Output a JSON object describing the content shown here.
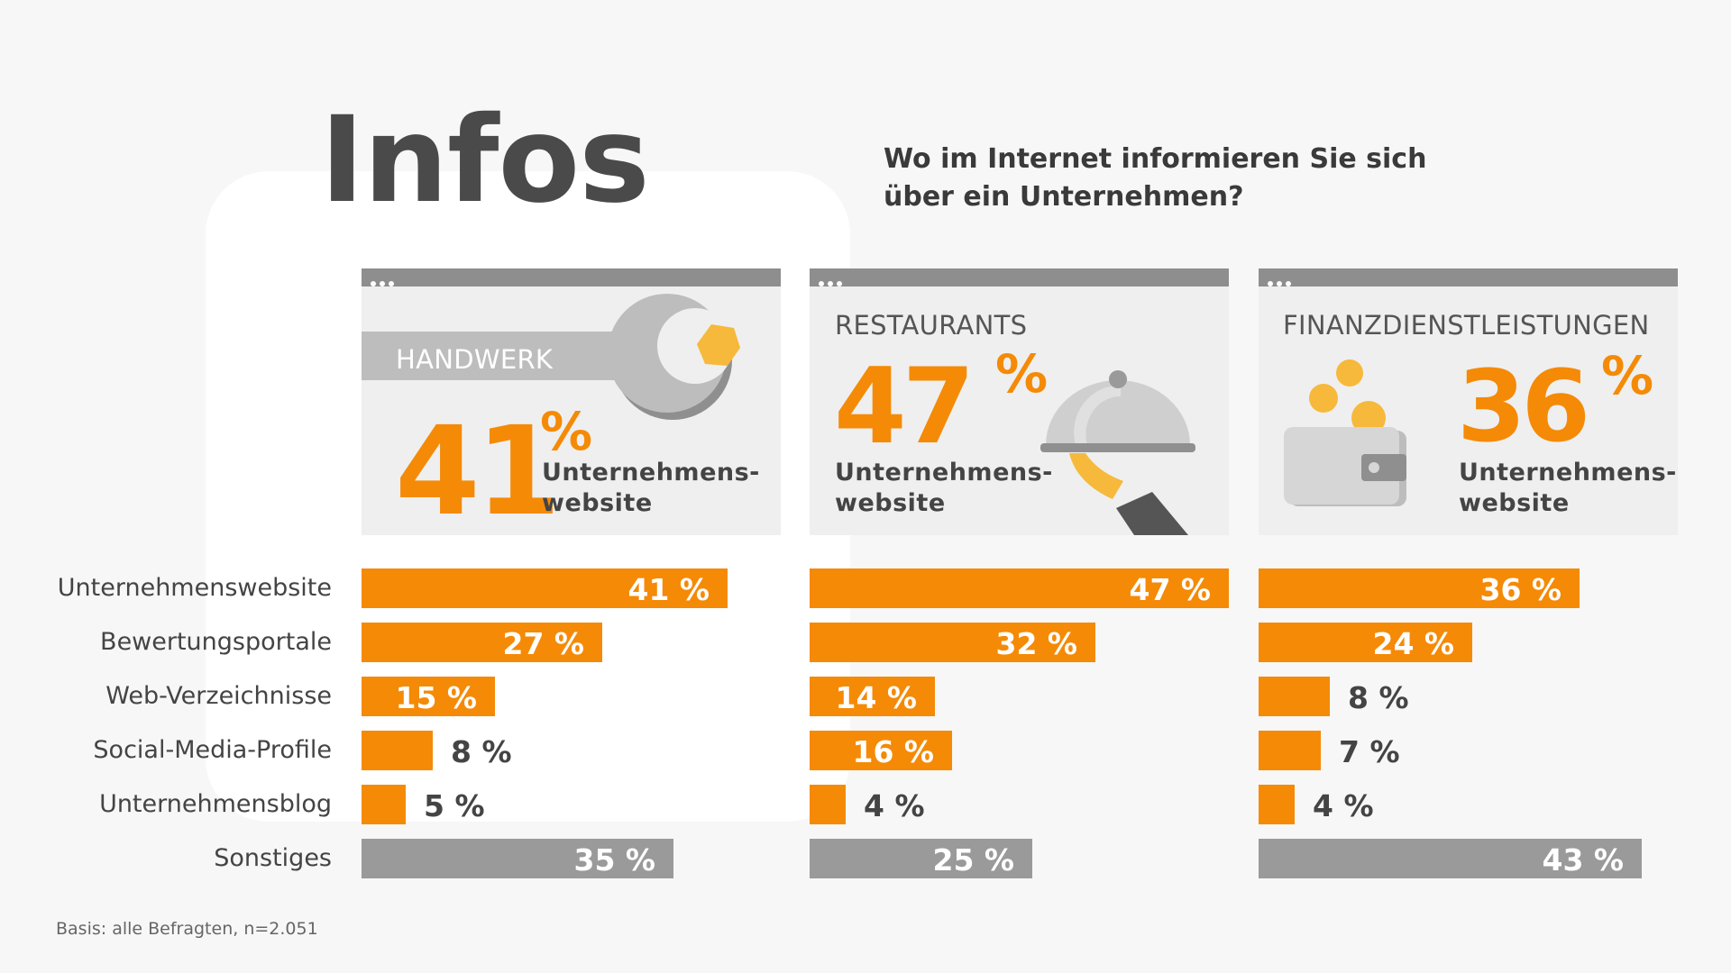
{
  "header": {
    "title": "Infos",
    "question_line1": "Wo im Internet informieren Sie sich",
    "question_line2": "über ein Unternehmen?"
  },
  "panels": [
    {
      "label": "HANDWERK",
      "value": "41",
      "unit": "%",
      "sub1": "Unternehmens-",
      "sub2": "website",
      "icon": "wrench-icon"
    },
    {
      "label": "RESTAURANTS",
      "value": "47",
      "unit": "%",
      "sub1": "Unternehmens-",
      "sub2": "website",
      "icon": "cloche-icon"
    },
    {
      "label": "FINANZDIENSTLEISTUNGEN",
      "value": "36",
      "unit": "%",
      "sub1": "Unternehmens-",
      "sub2": "website",
      "icon": "wallet-icon"
    }
  ],
  "footnote": "Basis: alle Befragten, n=2.051",
  "colors": {
    "accent": "#f58a07",
    "other": "#9a9a9a"
  },
  "chart_data": {
    "type": "bar",
    "orientation": "horizontal",
    "categories": [
      "Unternehmenswebsite",
      "Bewertungsportale",
      "Web-Verzeichnisse",
      "Social-Media-Profile",
      "Unternehmensblog",
      "Sonstiges"
    ],
    "series": [
      {
        "name": "HANDWERK",
        "values": [
          41,
          27,
          15,
          8,
          5,
          35
        ],
        "labels": [
          "41 %",
          "27 %",
          "15 %",
          "8 %",
          "5 %",
          "35 %"
        ]
      },
      {
        "name": "RESTAURANTS",
        "values": [
          47,
          32,
          14,
          16,
          4,
          25
        ],
        "labels": [
          "47 %",
          "32 %",
          "14 %",
          "16 %",
          "4 %",
          "25 %"
        ]
      },
      {
        "name": "FINANZDIENSTLEISTUNGEN",
        "values": [
          36,
          24,
          8,
          7,
          4,
          43
        ],
        "labels": [
          "36 %",
          "24 %",
          "8 %",
          "7 %",
          "4 %",
          "43 %"
        ]
      }
    ],
    "xlim": [
      0,
      47
    ],
    "grid": false
  }
}
